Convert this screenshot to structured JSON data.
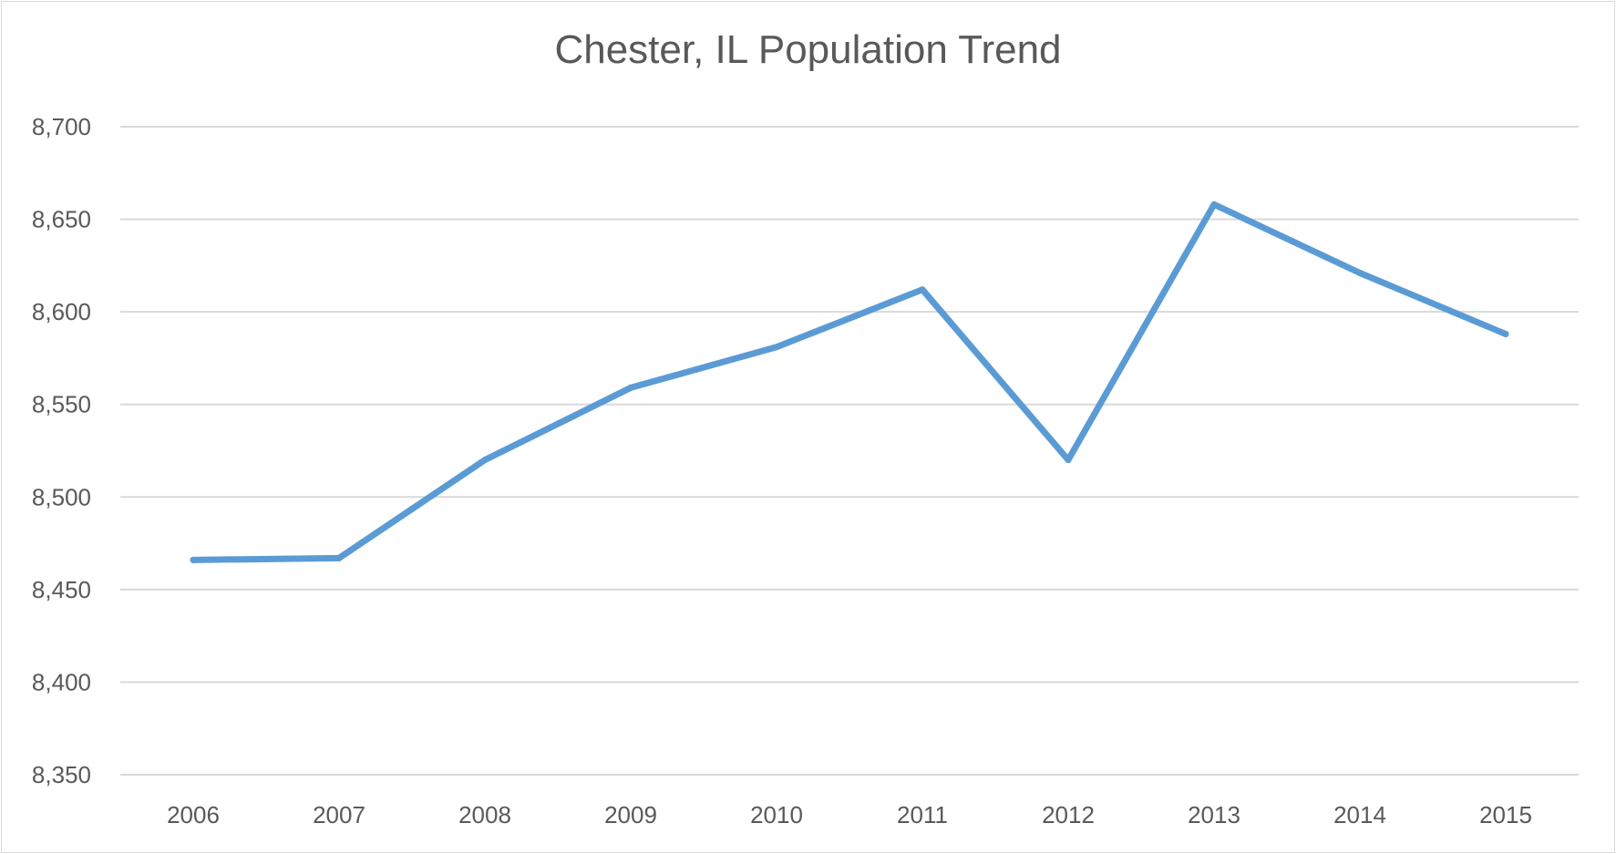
{
  "chart_data": {
    "type": "line",
    "title": "Chester, IL Population Trend",
    "xlabel": "",
    "ylabel": "",
    "categories": [
      "2006",
      "2007",
      "2008",
      "2009",
      "2010",
      "2011",
      "2012",
      "2013",
      "2014",
      "2015"
    ],
    "series": [
      {
        "values": [
          8466,
          8467,
          8520,
          8559,
          8581,
          8612,
          8520,
          8658,
          8621,
          8588
        ],
        "color": "#5b9bd5"
      }
    ],
    "ylim": [
      8350,
      8700
    ],
    "yticks": [
      8350,
      8400,
      8450,
      8500,
      8550,
      8600,
      8650,
      8700
    ],
    "ytick_labels": [
      "8,350",
      "8,400",
      "8,450",
      "8,500",
      "8,550",
      "8,600",
      "8,650",
      "8,700"
    ],
    "grid": true,
    "gridline_color": "#d9d9d9",
    "text_color": "#595959",
    "legend": "none"
  }
}
